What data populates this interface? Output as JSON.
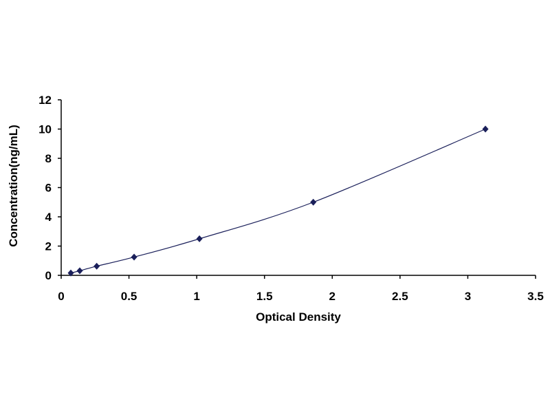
{
  "chart_data": {
    "type": "scatter",
    "title": "",
    "xlabel": "Optical Density",
    "ylabel": "Concentration(ng/mL)",
    "xlim": [
      0,
      3.5
    ],
    "ylim": [
      0,
      12
    ],
    "xticks": [
      "0",
      "0.5",
      "1",
      "1.5",
      "2",
      "2.5",
      "3",
      "3.5"
    ],
    "yticks": [
      "0",
      "2",
      "4",
      "6",
      "8",
      "10",
      "12"
    ],
    "grid": false,
    "legend": "none",
    "trendline": "smooth curve through points",
    "series": [
      {
        "x": [
          0.071,
          0.137,
          0.262,
          0.538,
          1.02,
          1.86,
          3.13
        ],
        "y": [
          0.156,
          0.312,
          0.625,
          1.25,
          2.5,
          5,
          10
        ],
        "color": "#1a1f5a"
      }
    ]
  }
}
